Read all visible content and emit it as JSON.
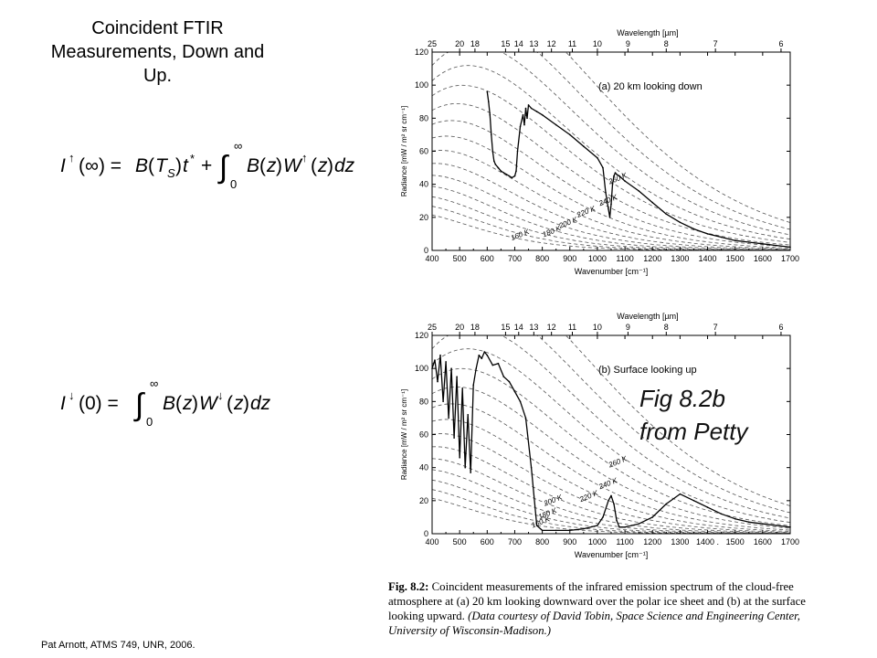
{
  "slide": {
    "title": "Coincident FTIR Measurements, Down and Up.",
    "footer": "Pat Arnott, ATMS 749, UNR, 2006."
  },
  "equations": {
    "upwelling": "I↑(∞) = B(T_S)t* + ∫₀^∞ B(z)W↑(z)dz",
    "downwelling": "I↓(0) = ∫₀^∞ B(z)W↓(z)dz"
  },
  "handwritten_note": "Fig 8.2b from Petty",
  "caption": {
    "figure_label": "Fig. 8.2:",
    "text": "Coincident measurements of the infrared emission spectrum of the cloud-free atmosphere at (a) 20 km looking downward over the polar ice sheet and (b) at the surface looking upward.",
    "courtesy": "(Data courtesy of David Tobin, Space Science and Engineering Center, University of Wisconsin-Madison.)"
  },
  "colors": {
    "ink": "#000000",
    "dashed": "#555555",
    "background": "#ffffff"
  },
  "chart_data": [
    {
      "type": "line",
      "panel_label": "(a) 20 km looking down",
      "xlabel": "Wavenumber [cm⁻¹]",
      "ylabel": "Radiance [mW / m² sr cm⁻¹]",
      "top_axis_label": "Wavelength [µm]",
      "xlim": [
        400,
        1700
      ],
      "ylim": [
        0,
        120
      ],
      "x_ticks": [
        400,
        500,
        600,
        700,
        800,
        900,
        1000,
        1100,
        1200,
        1300,
        1400,
        1500,
        1600,
        1700
      ],
      "x_tick_labels": [
        "400",
        "500",
        "600",
        "700",
        "800",
        "900",
        "1000",
        "1100",
        "1200",
        "1300",
        "1400",
        "1500",
        "1600",
        "1700"
      ],
      "y_ticks": [
        0,
        20,
        40,
        60,
        80,
        100,
        120
      ],
      "top_ticks": [
        25,
        20,
        18,
        15,
        14,
        13,
        12,
        11,
        10,
        9,
        8,
        7,
        6
      ],
      "grid": false,
      "planck_curves_K": [
        160,
        170,
        180,
        190,
        200,
        210,
        220,
        230,
        240,
        250,
        260,
        270,
        280,
        290,
        300
      ],
      "planck_labels": [
        {
          "text": "260 K",
          "T": 260,
          "x": 1045
        },
        {
          "text": "240 K",
          "T": 240,
          "x": 1010
        },
        {
          "text": "220 K",
          "T": 220,
          "x": 930
        },
        {
          "text": "200 K",
          "T": 200,
          "x": 865
        },
        {
          "text": "180 K",
          "T": 180,
          "x": 805
        },
        {
          "text": "160 K",
          "T": 160,
          "x": 690
        }
      ],
      "series": [
        {
          "x": [
            600,
            605,
            610,
            615,
            620,
            625,
            630,
            640,
            650,
            660,
            670,
            680,
            690,
            700,
            705,
            710,
            720,
            730,
            735,
            740,
            745,
            750,
            760,
            780,
            800,
            850,
            900,
            950,
            1000,
            1020,
            1030,
            1040,
            1045,
            1050,
            1055,
            1060,
            1065,
            1070,
            1080,
            1100,
            1150,
            1200,
            1250,
            1300,
            1350,
            1400,
            1450,
            1500,
            1550,
            1600,
            1650,
            1700
          ],
          "y": [
            96,
            90,
            82,
            70,
            60,
            54,
            52,
            50,
            48,
            47,
            46,
            45,
            44,
            45,
            48,
            60,
            75,
            82,
            76,
            86,
            80,
            88,
            86,
            84,
            82,
            76,
            70,
            63,
            56,
            50,
            35,
            25,
            20,
            28,
            40,
            45,
            47,
            46,
            45,
            42,
            36,
            29,
            22,
            17,
            13,
            10,
            8,
            6,
            5,
            4,
            3,
            2
          ]
        }
      ]
    },
    {
      "type": "line",
      "panel_label": "(b) Surface looking up",
      "xlabel": "Wavenumber [cm⁻¹]",
      "ylabel": "Radiance [mW / m² sr cm⁻¹]",
      "top_axis_label": "Wavelength [µm]",
      "xlim": [
        400,
        1700
      ],
      "ylim": [
        0,
        120
      ],
      "x_ticks": [
        400,
        500,
        600,
        700,
        800,
        900,
        1000,
        1100,
        1200,
        1300,
        1400,
        1500,
        1600,
        1700
      ],
      "x_tick_labels": [
        "400",
        "500",
        "600",
        "700",
        "800",
        "900",
        "1000",
        "1100",
        "1200",
        "1300",
        "1400 .",
        "1500",
        "1600",
        "1700"
      ],
      "y_ticks": [
        0,
        20,
        40,
        60,
        80,
        100,
        120
      ],
      "top_ticks": [
        25,
        20,
        18,
        15,
        14,
        13,
        12,
        11,
        10,
        9,
        8,
        7,
        6
      ],
      "grid": false,
      "planck_curves_K": [
        160,
        170,
        180,
        190,
        200,
        210,
        220,
        230,
        240,
        250,
        260,
        270,
        280,
        290,
        300
      ],
      "planck_labels": [
        {
          "text": "260 K",
          "T": 260,
          "x": 1045
        },
        {
          "text": "240 K",
          "T": 240,
          "x": 1010
        },
        {
          "text": "220 K",
          "T": 220,
          "x": 940
        },
        {
          "text": "200 K",
          "T": 200,
          "x": 810
        },
        {
          "text": "180 K",
          "T": 180,
          "x": 790
        },
        {
          "text": "160 K",
          "T": 160,
          "x": 765
        }
      ],
      "series": [
        {
          "x": [
            400,
            410,
            420,
            430,
            440,
            450,
            460,
            470,
            480,
            490,
            500,
            510,
            520,
            530,
            540,
            550,
            560,
            570,
            580,
            590,
            600,
            620,
            640,
            660,
            680,
            700,
            720,
            740,
            760,
            780,
            800,
            850,
            900,
            950,
            1000,
            1020,
            1040,
            1050,
            1060,
            1070,
            1080,
            1100,
            1150,
            1200,
            1250,
            1300,
            1350,
            1400,
            1450,
            1500,
            1550,
            1600,
            1650,
            1700
          ],
          "y": [
            100,
            105,
            92,
            108,
            80,
            104,
            70,
            100,
            58,
            95,
            46,
            88,
            40,
            72,
            37,
            90,
            100,
            108,
            106,
            110,
            108,
            102,
            103,
            95,
            92,
            86,
            80,
            70,
            40,
            5,
            2,
            2,
            2,
            3,
            5,
            10,
            20,
            23,
            18,
            8,
            4,
            4,
            6,
            10,
            18,
            24,
            20,
            16,
            12,
            9,
            7,
            6,
            5,
            4
          ]
        }
      ]
    }
  ]
}
